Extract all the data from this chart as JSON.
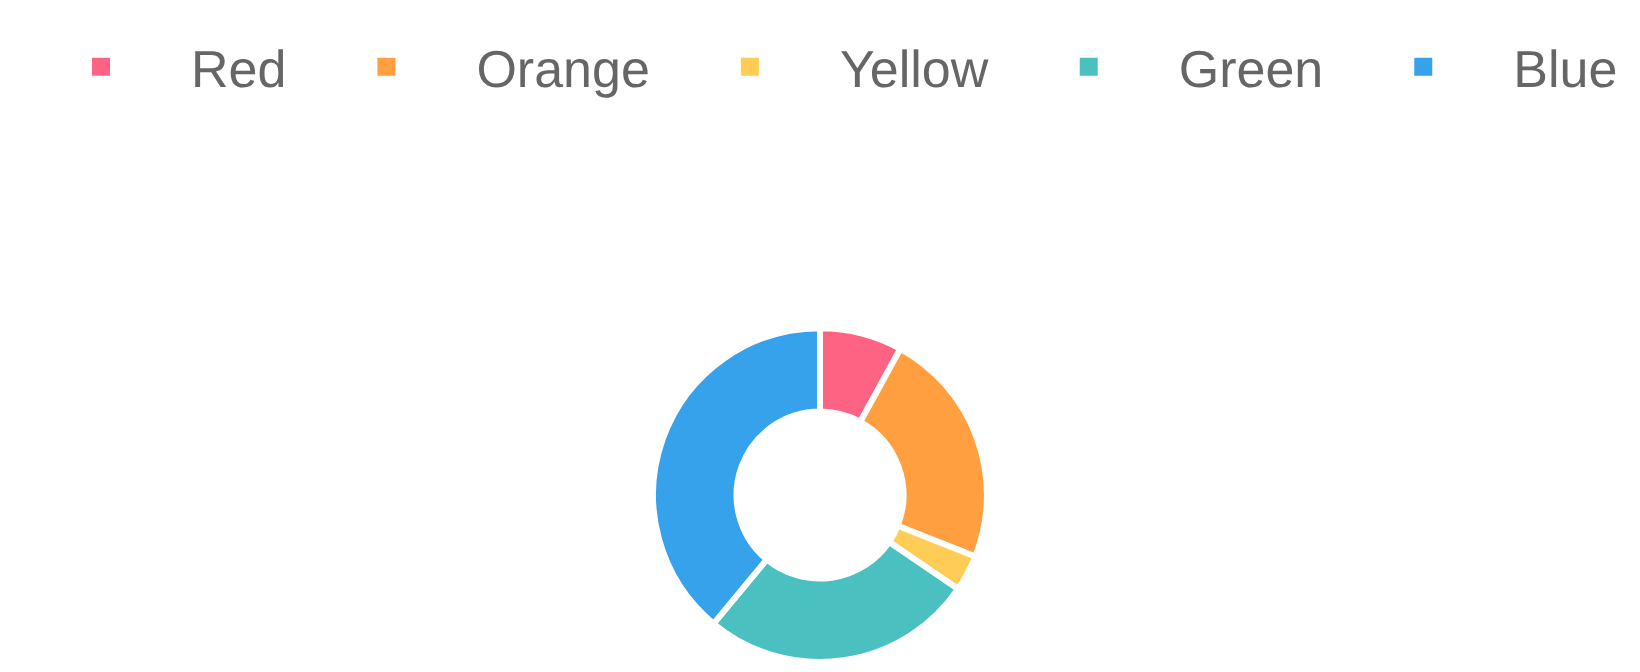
{
  "chart_data": {
    "type": "donut",
    "categories": [
      "Red",
      "Orange",
      "Yellow",
      "Green",
      "Blue"
    ],
    "values": [
      8,
      23,
      3.5,
      26.5,
      39
    ],
    "colors": [
      "#ff6384",
      "#ff9f40",
      "#ffcd56",
      "#4bc0c0",
      "#36a2eb"
    ],
    "legend": "top"
  }
}
